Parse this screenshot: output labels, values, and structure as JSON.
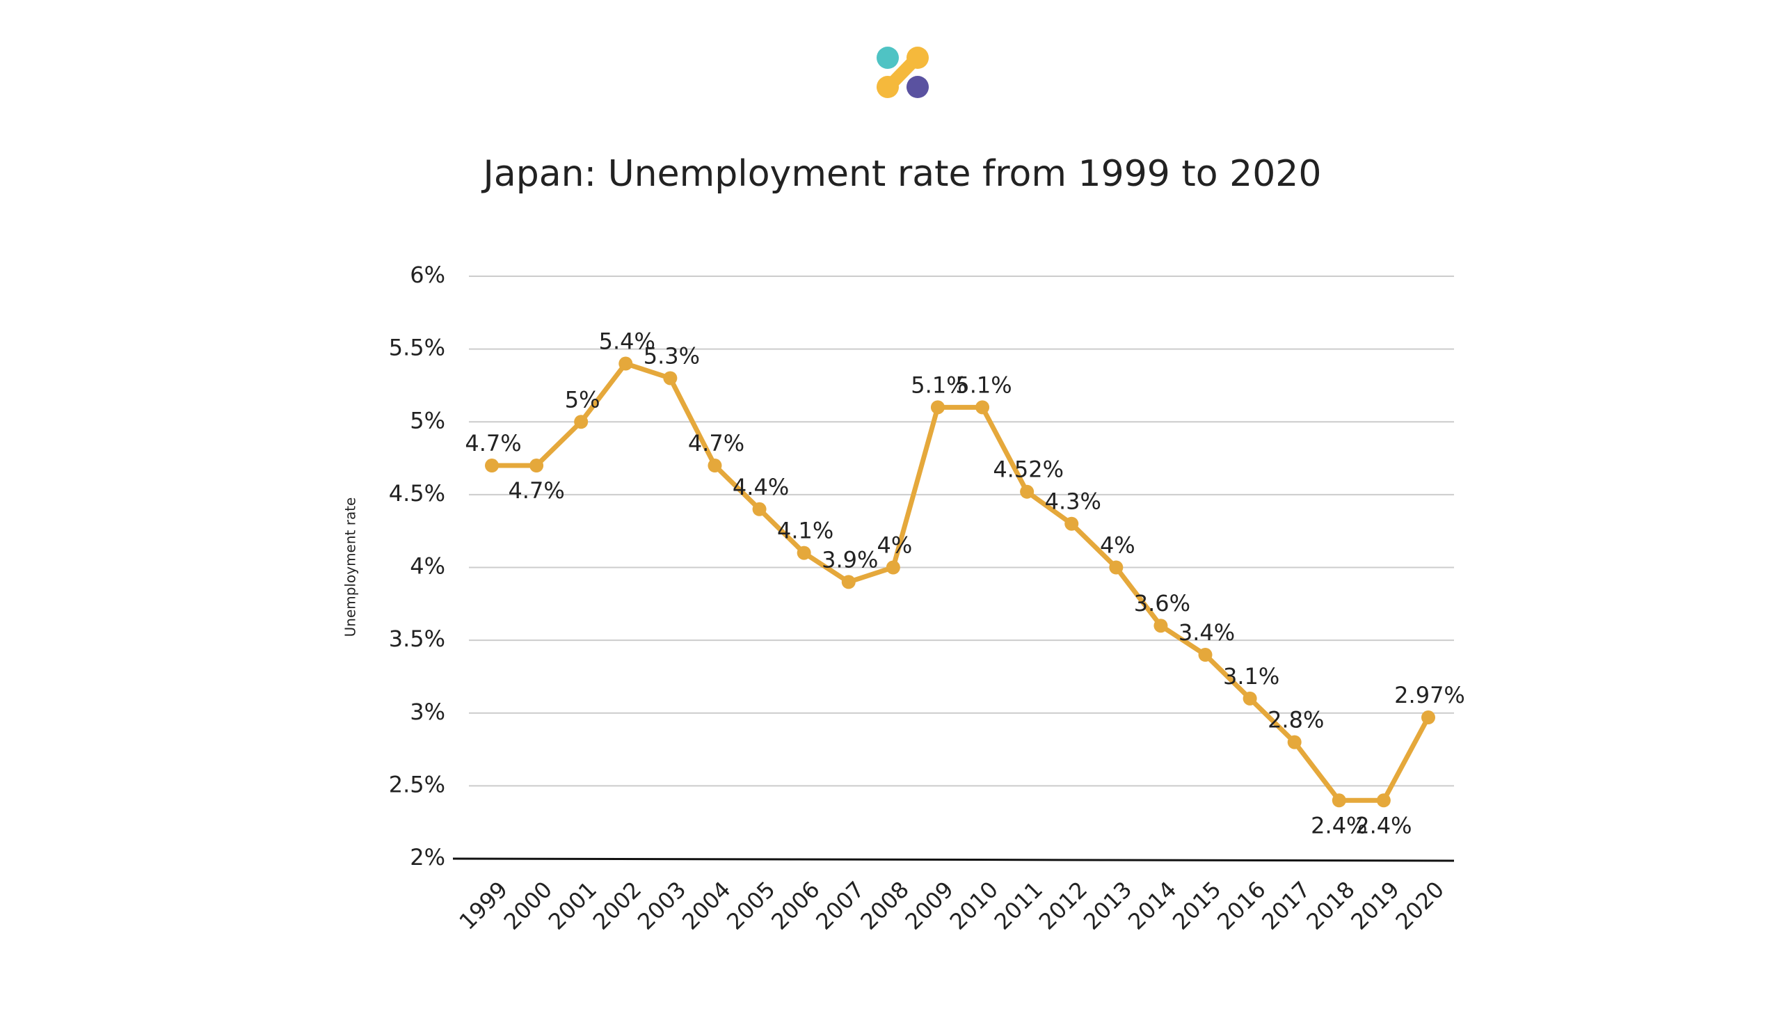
{
  "chart_data": {
    "type": "line",
    "title": "Japan: Unemployment rate from 1999 to 2020",
    "y_label": "Unemployment rate",
    "categories": [
      "1999",
      "2000",
      "2001",
      "2002",
      "2003",
      "2004",
      "2005",
      "2006",
      "2007",
      "2008",
      "2009",
      "2010",
      "2011",
      "2012",
      "2013",
      "2014",
      "2015",
      "2016",
      "2017",
      "2018",
      "2019",
      "2020"
    ],
    "series": [
      {
        "name": "Unemployment rate",
        "color": "#e5a83b",
        "values": [
          4.7,
          4.7,
          5,
          5.4,
          5.3,
          4.7,
          4.4,
          4.1,
          3.9,
          4,
          5.1,
          5.1,
          4.52,
          4.3,
          4,
          3.6,
          3.4,
          3.1,
          2.8,
          2.4,
          2.4,
          2.97
        ],
        "value_labels": [
          "4.7%",
          "4.7%",
          "5%",
          "5.4%",
          "5.3%",
          "4.7%",
          "4.4%",
          "4.1%",
          "3.9%",
          "4%",
          "5.1%",
          "5.1%",
          "4.52%",
          "4.3%",
          "4%",
          "3.6%",
          "3.4%",
          "3.1%",
          "2.8%",
          "2.4%",
          "2.4%",
          "2.97%"
        ]
      }
    ],
    "ylim": [
      2,
      6
    ],
    "yticks": [
      {
        "value": 2,
        "label": "2%"
      },
      {
        "value": 2.5,
        "label": "2.5%"
      },
      {
        "value": 3,
        "label": "3%"
      },
      {
        "value": 3.5,
        "label": "3.5%"
      },
      {
        "value": 4,
        "label": "4%"
      },
      {
        "value": 4.5,
        "label": "4.5%"
      },
      {
        "value": 5,
        "label": "5%"
      },
      {
        "value": 5.5,
        "label": "5.5%"
      },
      {
        "value": 6,
        "label": "6%"
      }
    ],
    "grid": true
  }
}
